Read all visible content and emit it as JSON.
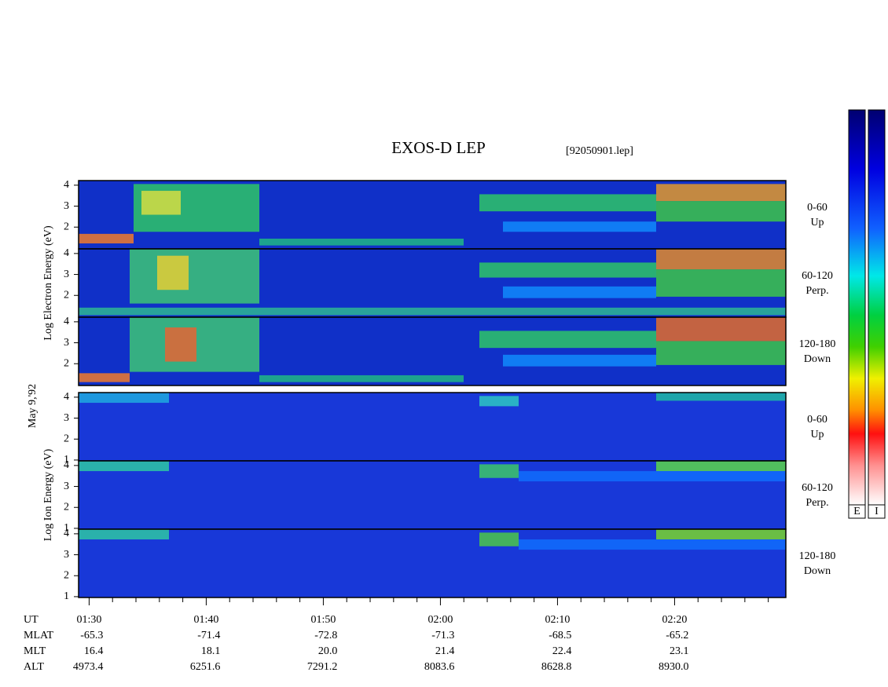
{
  "chart_data": {
    "type": "spectrogram",
    "title": "EXOS-D LEP",
    "file": "[92050901.lep]",
    "date_label": "May  9,'92",
    "ylim": [
      0.96,
      4.22
    ],
    "groups": [
      {
        "y_label": "Log  Electron  Energy (eV)",
        "yticks": [
          2,
          3,
          4
        ],
        "panels": [
          {
            "angle": "0-60",
            "direction": "Up"
          },
          {
            "angle": "60-120",
            "direction": "Perp."
          },
          {
            "angle": "120-180",
            "direction": "Down"
          }
        ]
      },
      {
        "y_label": "Log  Ion  Energy (eV)",
        "yticks": [
          1,
          2,
          3,
          4
        ],
        "panels": [
          {
            "angle": "0-60",
            "direction": "Up"
          },
          {
            "angle": "60-120",
            "direction": "Perp."
          },
          {
            "angle": "120-180",
            "direction": "Down"
          }
        ]
      }
    ],
    "xlim": [
      89.1,
      149.5
    ],
    "x_label": "UT",
    "xticks": [
      {
        "value": 90,
        "label": "01:30"
      },
      {
        "value": 100,
        "label": "01:40"
      },
      {
        "value": 110,
        "label": "01:50"
      },
      {
        "value": 120,
        "label": "02:00"
      },
      {
        "value": 130,
        "label": "02:10"
      },
      {
        "value": 140,
        "label": "02:20"
      }
    ],
    "xminorticks": [
      92,
      94,
      96,
      98,
      102,
      104,
      106,
      108,
      112,
      114,
      116,
      118,
      122,
      124,
      126,
      128,
      132,
      134,
      136,
      138,
      142,
      144,
      146,
      148
    ],
    "ephemeris": [
      {
        "label": "MLAT",
        "values": [
          "-65.3",
          "-71.4",
          "-72.8",
          "-71.3",
          "-68.5",
          "-65.2"
        ]
      },
      {
        "label": "MLT",
        "values": [
          "16.4",
          "18.1",
          "20.0",
          "21.4",
          "22.4",
          "23.1"
        ]
      },
      {
        "label": "ALT",
        "values": [
          "4973.4",
          "6251.6",
          "7291.2",
          "8083.6",
          "8628.8",
          "8930.0"
        ]
      }
    ],
    "colorbars": [
      "E",
      "I"
    ]
  }
}
